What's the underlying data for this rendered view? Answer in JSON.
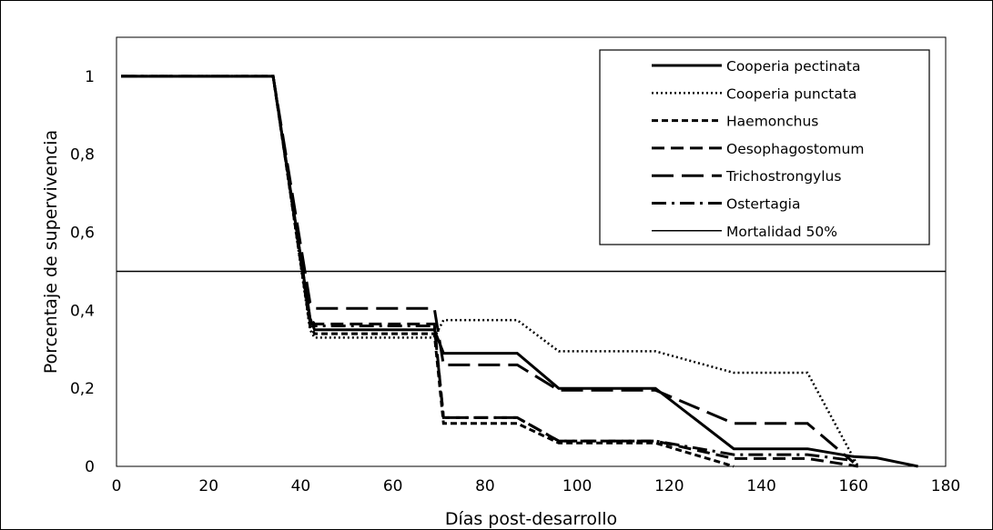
{
  "chart_data": {
    "type": "line",
    "title": "",
    "xlabel": "Días post-desarrollo",
    "ylabel": "Porcentaje de supervivencia",
    "xlim": [
      0,
      180
    ],
    "ylim": [
      0,
      1.1
    ],
    "xticks": [
      0,
      20,
      40,
      60,
      80,
      100,
      120,
      140,
      160,
      180
    ],
    "yticks": [
      0,
      0.2,
      0.4,
      0.6,
      0.8,
      1
    ],
    "ytick_labels": [
      "0",
      "0,2",
      "0,4",
      "0,6",
      "0,8",
      "1"
    ],
    "xtick_labels": [
      "0",
      "20",
      "40",
      "60",
      "80",
      "100",
      "120",
      "140",
      "160",
      "180"
    ],
    "grid": false,
    "legend_position": "top-right",
    "series": [
      {
        "name": "Cooperia pectinata",
        "style": "solid",
        "x": [
          1,
          34,
          42,
          43,
          69,
          71,
          87,
          96,
          117,
          134,
          150,
          160,
          165,
          174
        ],
        "y": [
          1,
          1,
          0.38,
          0.35,
          0.35,
          0.29,
          0.29,
          0.2,
          0.2,
          0.045,
          0.045,
          0.025,
          0.022,
          0
        ]
      },
      {
        "name": "Cooperia punctata",
        "style": "dotted",
        "x": [
          1,
          34,
          42,
          43,
          69,
          71,
          87,
          96,
          117,
          134,
          150,
          161
        ],
        "y": [
          1,
          1,
          0.35,
          0.33,
          0.33,
          0.375,
          0.375,
          0.295,
          0.295,
          0.24,
          0.24,
          0
        ]
      },
      {
        "name": "Haemonchus",
        "style": "short-dash",
        "x": [
          1,
          34,
          42,
          43,
          69,
          71,
          87,
          96,
          117,
          134
        ],
        "y": [
          1,
          1,
          0.36,
          0.34,
          0.34,
          0.11,
          0.11,
          0.06,
          0.06,
          0
        ]
      },
      {
        "name": "Oesophagostomum",
        "style": "dash",
        "x": [
          1,
          34,
          42,
          43,
          69,
          71,
          87,
          96,
          117,
          134,
          150,
          161
        ],
        "y": [
          1,
          1,
          0.38,
          0.365,
          0.365,
          0.125,
          0.125,
          0.065,
          0.065,
          0.02,
          0.02,
          0
        ]
      },
      {
        "name": "Trichostrongylus",
        "style": "long-dash",
        "x": [
          1,
          34,
          42,
          43,
          69,
          71,
          87,
          96,
          117,
          134,
          150,
          160
        ],
        "y": [
          1,
          1,
          0.42,
          0.405,
          0.405,
          0.26,
          0.26,
          0.195,
          0.195,
          0.11,
          0.11,
          0.01
        ]
      },
      {
        "name": "Ostertagia",
        "style": "dash-dot",
        "x": [
          1,
          34,
          42,
          43,
          69,
          71,
          87,
          96,
          117,
          134,
          150,
          160
        ],
        "y": [
          1,
          1,
          0.37,
          0.36,
          0.36,
          0.125,
          0.125,
          0.065,
          0.065,
          0.03,
          0.03,
          0.015
        ]
      },
      {
        "name": "Mortalidad 50%",
        "style": "thin-solid",
        "x": [
          0,
          180
        ],
        "y": [
          0.5,
          0.5
        ]
      }
    ]
  }
}
